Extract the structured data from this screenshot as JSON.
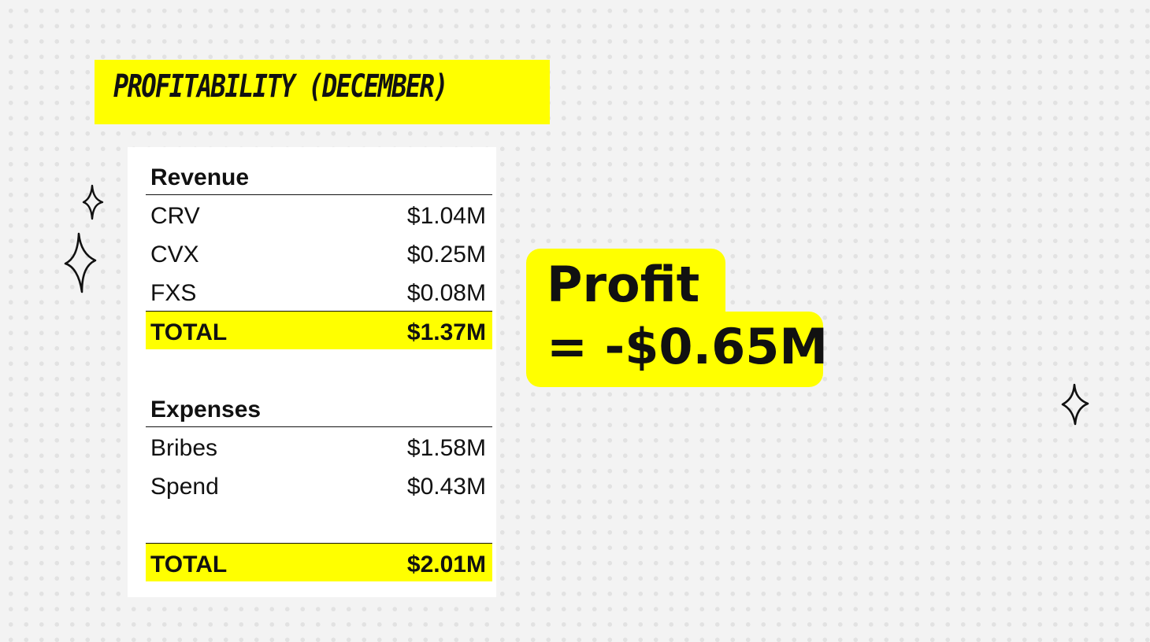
{
  "slide": {
    "title": "PROFITABILITY (DECEMBER)"
  },
  "revenue": {
    "header": "Revenue",
    "items": [
      {
        "label": "CRV",
        "value": "$1.04M"
      },
      {
        "label": "CVX",
        "value": "$0.25M"
      },
      {
        "label": "FXS",
        "value": "$0.08M"
      }
    ],
    "total_label": "TOTAL",
    "total_value": "$1.37M"
  },
  "expenses": {
    "header": "Expenses",
    "items": [
      {
        "label": "Bribes",
        "value": "$1.58M"
      },
      {
        "label": "Spend",
        "value": "$0.43M"
      }
    ],
    "total_label": "TOTAL",
    "total_value": "$2.01M"
  },
  "profit": {
    "line1": "Profit",
    "line2": "= -$0.65M"
  },
  "colors": {
    "highlight": "#ffff00",
    "text": "#111111",
    "background": "#f3f3f3"
  },
  "icons": [
    "sparkle-icon"
  ]
}
